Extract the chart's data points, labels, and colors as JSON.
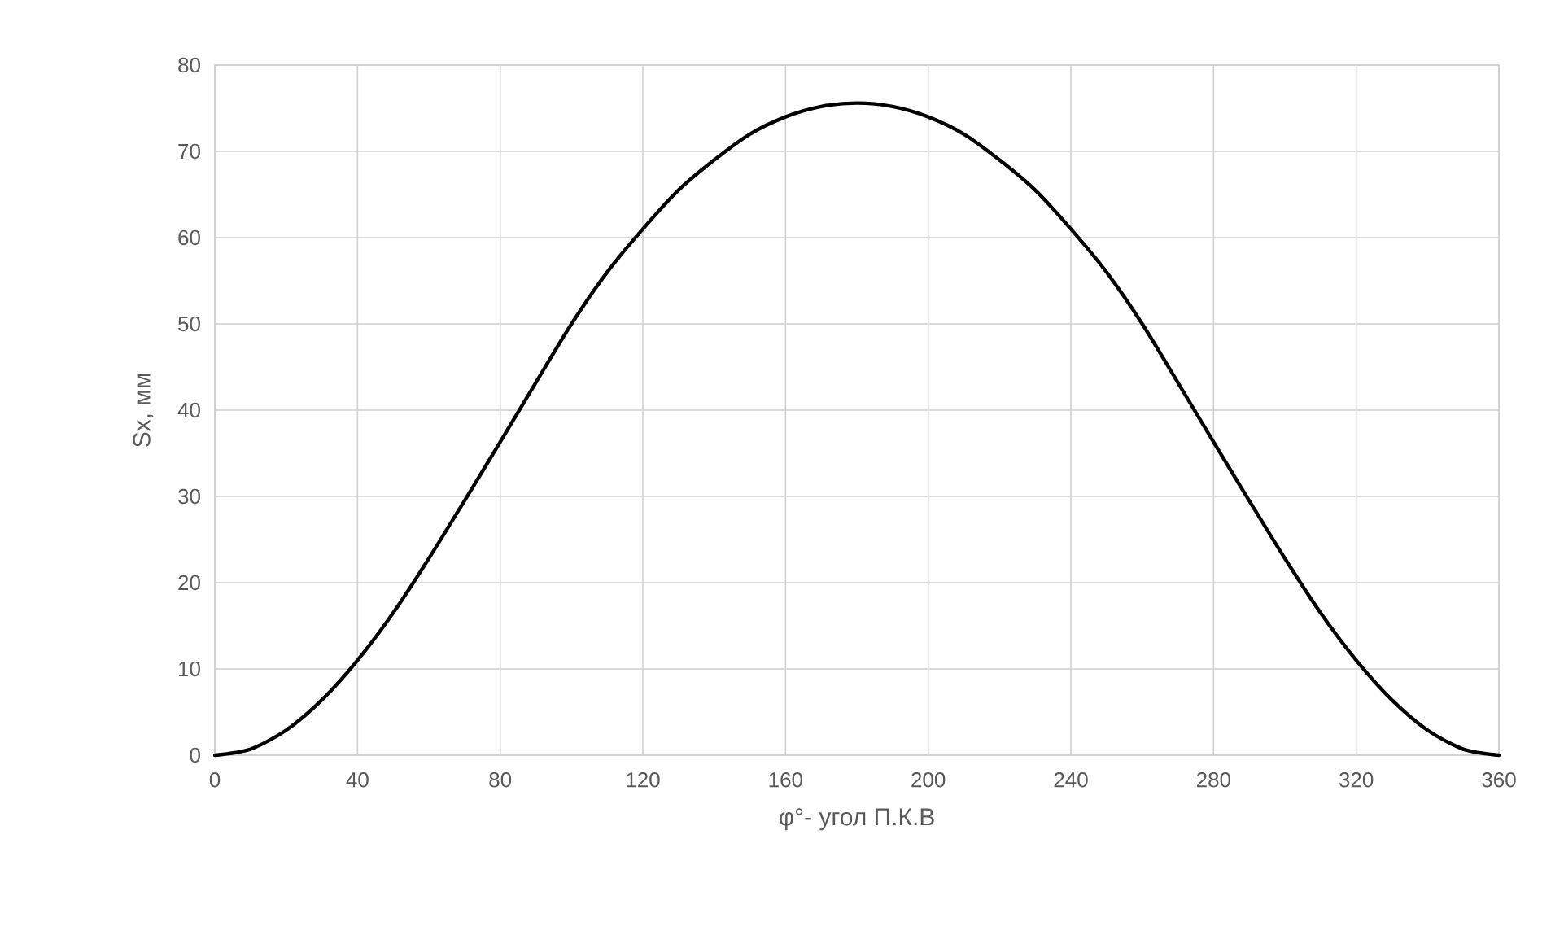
{
  "chart_data": {
    "type": "line",
    "xlabel": "φ°- угол П.К.В",
    "ylabel": "Sx, мм",
    "x": [
      0,
      10,
      20,
      30,
      40,
      50,
      60,
      70,
      80,
      90,
      100,
      110,
      120,
      130,
      140,
      150,
      160,
      170,
      180,
      190,
      200,
      210,
      220,
      230,
      240,
      250,
      260,
      270,
      280,
      290,
      300,
      310,
      320,
      330,
      340,
      350,
      360
    ],
    "series": [
      {
        "color": "#000000",
        "values": [
          0,
          0.7,
          2.9,
          6.4,
          11,
          16.5,
          22.8,
          29.5,
          36.3,
          43.2,
          50,
          56,
          61,
          65.5,
          69,
          72,
          74,
          75.2,
          75.6,
          75.2,
          74,
          72,
          69,
          65.5,
          61,
          56,
          50,
          43.2,
          36.3,
          29.5,
          22.8,
          16.5,
          11,
          6.4,
          2.9,
          0.7,
          0
        ]
      }
    ],
    "xlim": [
      0,
      360
    ],
    "ylim": [
      0,
      80
    ],
    "xticks": [
      0,
      40,
      80,
      120,
      160,
      200,
      240,
      280,
      320,
      360
    ],
    "yticks": [
      0,
      10,
      20,
      30,
      40,
      50,
      60,
      70,
      80
    ],
    "grid": true
  }
}
